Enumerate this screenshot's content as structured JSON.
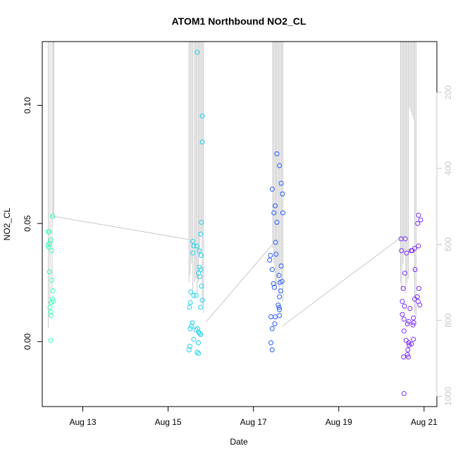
{
  "chart_data": {
    "type": "scatter",
    "title": "ATOM1 Northbound NO2_CL",
    "xlabel": "Date",
    "ylabel": "NO2_CL",
    "x_ticks": [
      {
        "value": 13,
        "label": "Aug 13"
      },
      {
        "value": 15,
        "label": "Aug 15"
      },
      {
        "value": 17,
        "label": "Aug 17"
      },
      {
        "value": 19,
        "label": "Aug 19"
      },
      {
        "value": 21,
        "label": "Aug 21"
      }
    ],
    "y_ticks": [
      {
        "value": 0.0,
        "label": "0.00"
      },
      {
        "value": 0.05,
        "label": "0.05"
      },
      {
        "value": 0.1,
        "label": "0.10"
      }
    ],
    "y2_ticks": [
      {
        "value": 200,
        "label": "200"
      },
      {
        "value": 400,
        "label": "400"
      },
      {
        "value": 600,
        "label": "600"
      },
      {
        "value": 800,
        "label": "800"
      },
      {
        "value": 1000,
        "label": "1000"
      }
    ],
    "xlim": [
      12.05,
      21.3
    ],
    "ylim": [
      -0.0275,
      0.127
    ],
    "y2lim": [
      1027,
      66
    ],
    "y2_reversed": true,
    "grid": false,
    "point_colors": {
      "profile1": "#33ffb8",
      "profile2": "#22d2ee",
      "profile3": "#2a5cff",
      "profile4": "#7a2cff"
    },
    "depth_line_color": "#c8c8c8",
    "series": [
      {
        "color": "#33ffb8",
        "points": [
          [
            12.19,
            0.0465
          ],
          [
            12.21,
            0.0465
          ],
          [
            12.18,
            0.041
          ],
          [
            12.2,
            0.04
          ],
          [
            12.22,
            0.0415
          ],
          [
            12.25,
            0.043
          ],
          [
            12.29,
            0.053
          ],
          [
            12.27,
            0.0385
          ],
          [
            12.22,
            0.0295
          ],
          [
            12.27,
            0.026
          ],
          [
            12.3,
            0.0215
          ],
          [
            12.29,
            0.018
          ],
          [
            12.31,
            0.017
          ],
          [
            12.26,
            0.0165
          ],
          [
            12.23,
            0.0145
          ],
          [
            12.25,
            0.0125
          ],
          [
            12.26,
            0.011
          ],
          [
            12.25,
            0.0005
          ]
        ]
      },
      {
        "color": "#22d2ee",
        "points": [
          [
            15.68,
            0.1225
          ],
          [
            15.8,
            0.0955
          ],
          [
            15.8,
            0.0845
          ],
          [
            15.78,
            0.0505
          ],
          [
            15.76,
            0.0455
          ],
          [
            15.58,
            0.0425
          ],
          [
            15.6,
            0.0405
          ],
          [
            15.67,
            0.0405
          ],
          [
            15.73,
            0.0385
          ],
          [
            15.58,
            0.0375
          ],
          [
            15.77,
            0.0365
          ],
          [
            15.73,
            0.0315
          ],
          [
            15.77,
            0.0305
          ],
          [
            15.71,
            0.029
          ],
          [
            15.74,
            0.0275
          ],
          [
            15.78,
            0.0235
          ],
          [
            15.53,
            0.021
          ],
          [
            15.6,
            0.0195
          ],
          [
            15.66,
            0.0195
          ],
          [
            15.52,
            0.0165
          ],
          [
            15.5,
            0.0145
          ],
          [
            15.8,
            0.0175
          ],
          [
            15.76,
            0.0145
          ],
          [
            15.57,
            0.008
          ],
          [
            15.55,
            0.0065
          ],
          [
            15.52,
            0.0055
          ],
          [
            15.65,
            0.005
          ],
          [
            15.69,
            0.0055
          ],
          [
            15.72,
            0.004
          ],
          [
            15.76,
            0.003
          ],
          [
            15.74,
            0.0035
          ],
          [
            15.6,
            0.001
          ],
          [
            15.71,
            -0.0005
          ],
          [
            15.51,
            -0.002
          ],
          [
            15.49,
            -0.0035
          ],
          [
            15.68,
            -0.0045
          ],
          [
            15.71,
            -0.005
          ]
        ]
      },
      {
        "color": "#2a5cff",
        "points": [
          [
            17.55,
            0.0795
          ],
          [
            17.61,
            0.0745
          ],
          [
            17.65,
            0.067
          ],
          [
            17.44,
            0.0645
          ],
          [
            17.68,
            0.0625
          ],
          [
            17.51,
            0.0575
          ],
          [
            17.48,
            0.0545
          ],
          [
            17.69,
            0.0545
          ],
          [
            17.55,
            0.0505
          ],
          [
            17.52,
            0.042
          ],
          [
            17.4,
            0.0365
          ],
          [
            17.53,
            0.037
          ],
          [
            17.38,
            0.0345
          ],
          [
            17.65,
            0.032
          ],
          [
            17.44,
            0.0305
          ],
          [
            17.6,
            0.028
          ],
          [
            17.67,
            0.0255
          ],
          [
            17.62,
            0.025
          ],
          [
            17.47,
            0.0245
          ],
          [
            17.49,
            0.023
          ],
          [
            17.64,
            0.0215
          ],
          [
            17.61,
            0.019
          ],
          [
            17.58,
            0.0155
          ],
          [
            17.6,
            0.0145
          ],
          [
            17.61,
            0.0135
          ],
          [
            17.41,
            0.0105
          ],
          [
            17.51,
            0.0105
          ],
          [
            17.61,
            0.011
          ],
          [
            17.5,
            0.0075
          ],
          [
            17.44,
            0.0055
          ],
          [
            17.41,
            -0.0005
          ],
          [
            17.44,
            -0.0035
          ]
        ]
      },
      {
        "color": "#7a2cff",
        "points": [
          [
            20.87,
            0.0535
          ],
          [
            20.92,
            0.0515
          ],
          [
            20.85,
            0.05
          ],
          [
            20.46,
            0.0435
          ],
          [
            20.56,
            0.0435
          ],
          [
            20.87,
            0.0405
          ],
          [
            20.47,
            0.0385
          ],
          [
            20.59,
            0.0375
          ],
          [
            20.7,
            0.0385
          ],
          [
            20.78,
            0.0395
          ],
          [
            20.72,
            0.0385
          ],
          [
            20.79,
            0.0305
          ],
          [
            20.55,
            0.029
          ],
          [
            20.88,
            0.0225
          ],
          [
            20.51,
            0.0225
          ],
          [
            20.84,
            0.019
          ],
          [
            20.78,
            0.018
          ],
          [
            20.86,
            0.017
          ],
          [
            20.49,
            0.017
          ],
          [
            20.9,
            0.0155
          ],
          [
            20.54,
            0.015
          ],
          [
            20.67,
            0.014
          ],
          [
            20.49,
            0.0115
          ],
          [
            20.75,
            0.01
          ],
          [
            20.53,
            0.0095
          ],
          [
            20.64,
            0.0085
          ],
          [
            20.61,
            0.0075
          ],
          [
            20.76,
            0.008
          ],
          [
            20.74,
            0.007
          ],
          [
            20.53,
            0.0045
          ],
          [
            20.58,
            0.0005
          ],
          [
            20.75,
            0.001
          ],
          [
            20.64,
            -0.0005
          ],
          [
            20.7,
            -0.001
          ],
          [
            20.65,
            -0.0015
          ],
          [
            20.62,
            -0.0035
          ],
          [
            20.61,
            -0.0055
          ],
          [
            20.52,
            -0.0065
          ],
          [
            20.63,
            -0.0065
          ],
          [
            20.53,
            -0.022
          ]
        ]
      }
    ],
    "depth_trace": {
      "axis": "y2",
      "segments": [
        [
          [
            12.25,
            525
          ],
          [
            15.48,
            587
          ]
        ],
        [
          [
            15.88,
            805
          ],
          [
            17.45,
            600
          ]
        ],
        [
          [
            17.68,
            815
          ],
          [
            20.5,
            578
          ]
        ]
      ],
      "casts": [
        [
          12.19,
          820
        ],
        [
          12.23,
          760
        ],
        [
          12.28,
          720
        ],
        [
          12.31,
          520
        ],
        [
          12.32,
          530
        ],
        [
          15.49,
          700
        ],
        [
          15.52,
          680
        ],
        [
          15.55,
          650
        ],
        [
          15.58,
          720
        ],
        [
          15.62,
          700
        ],
        [
          15.65,
          690
        ],
        [
          15.68,
          730
        ],
        [
          15.71,
          700
        ],
        [
          15.74,
          630
        ],
        [
          15.77,
          570
        ],
        [
          15.8,
          760
        ],
        [
          15.83,
          780
        ],
        [
          17.45,
          610
        ],
        [
          17.48,
          650
        ],
        [
          17.51,
          700
        ],
        [
          17.54,
          720
        ],
        [
          17.57,
          690
        ],
        [
          17.6,
          730
        ],
        [
          17.63,
          670
        ],
        [
          17.66,
          700
        ],
        [
          17.69,
          750
        ],
        [
          20.45,
          700
        ],
        [
          20.48,
          720
        ],
        [
          20.51,
          650
        ],
        [
          20.54,
          620
        ],
        [
          20.57,
          730
        ],
        [
          20.6,
          700
        ],
        [
          20.63,
          690
        ],
        [
          20.66,
          240
        ],
        [
          20.69,
          250
        ],
        [
          20.72,
          260
        ],
        [
          20.75,
          270
        ],
        [
          20.78,
          780
        ],
        [
          20.81,
          790
        ]
      ]
    }
  }
}
